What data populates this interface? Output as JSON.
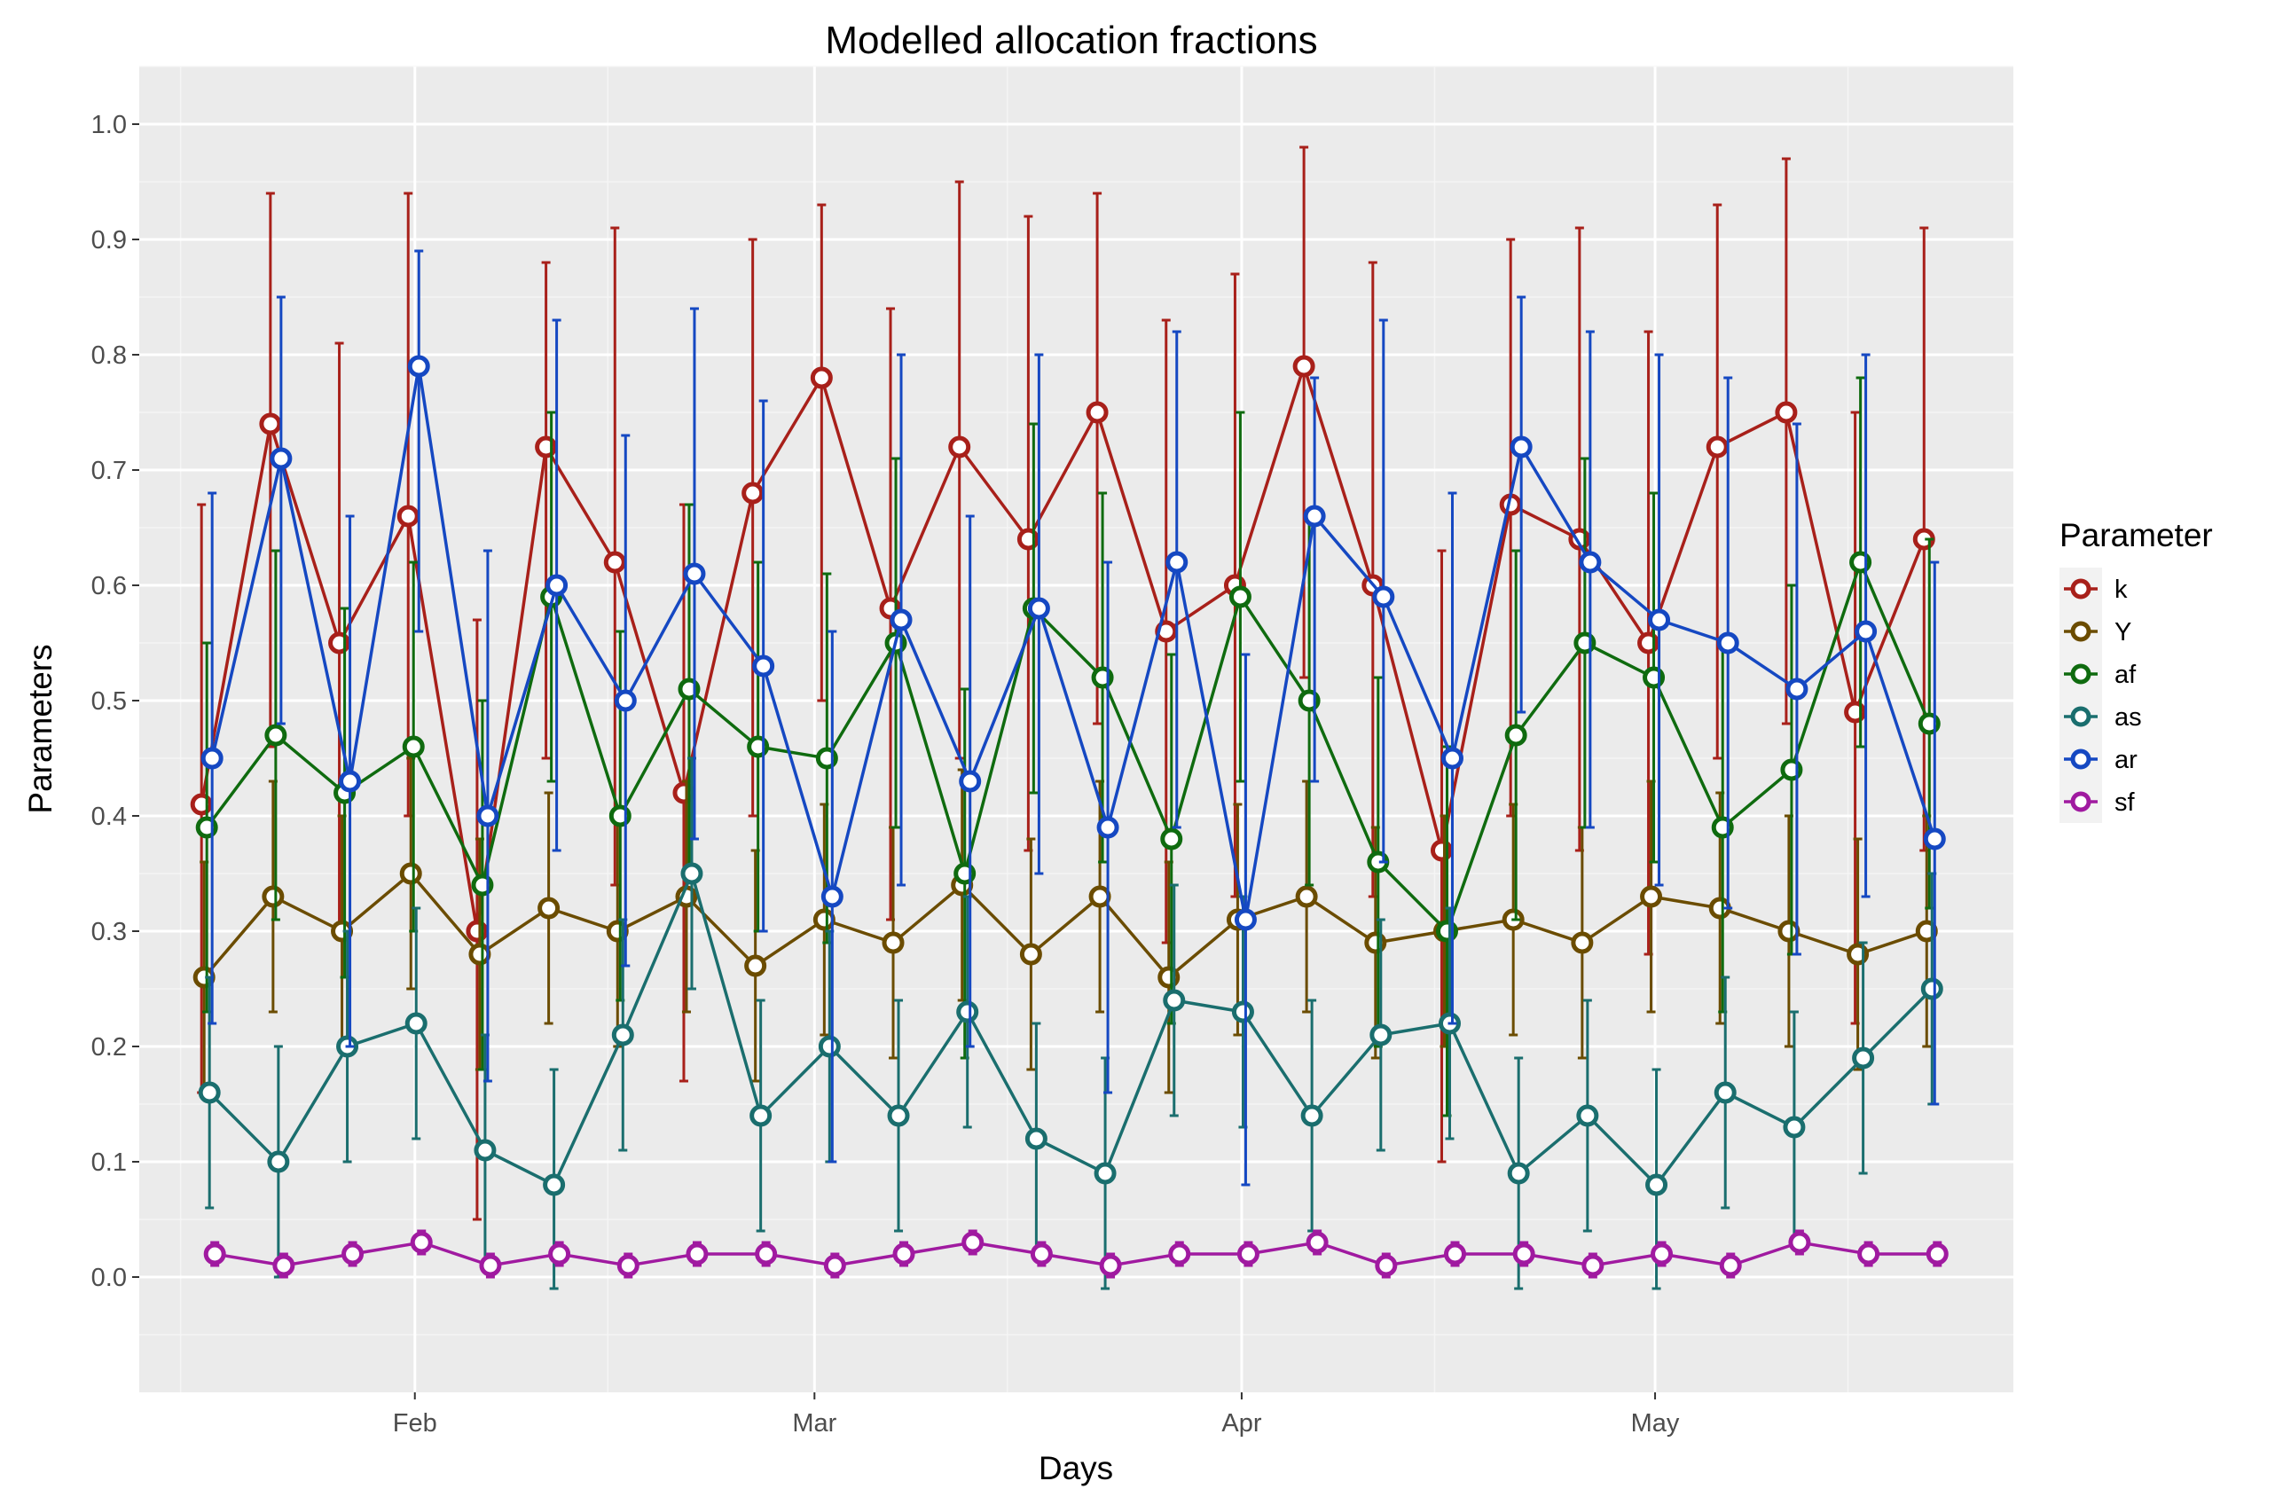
{
  "chart_data": {
    "type": "line",
    "title": "Modelled allocation fractions",
    "xlabel": "Days",
    "ylabel": "Parameters",
    "x_ticks": [
      "Feb",
      "Mar",
      "Apr",
      "May"
    ],
    "y_ticks": [
      "0.0",
      "0.1",
      "0.2",
      "0.3",
      "0.4",
      "0.5",
      "0.6",
      "0.7",
      "0.8",
      "0.9",
      "1.0"
    ],
    "ylim": [
      -0.1,
      1.05
    ],
    "xlim": [
      "2016-01-12",
      "2016-05-27"
    ],
    "grid": true,
    "error_bars": true,
    "legend": {
      "title": "Parameter",
      "position": "right"
    },
    "x": [
      "2016-01-17",
      "2016-01-22",
      "2016-01-27",
      "2016-02-01",
      "2016-02-06",
      "2016-02-11",
      "2016-02-16",
      "2016-02-21",
      "2016-02-26",
      "2016-03-02",
      "2016-03-07",
      "2016-03-12",
      "2016-03-17",
      "2016-03-22",
      "2016-03-27",
      "2016-04-01",
      "2016-04-06",
      "2016-04-11",
      "2016-04-16",
      "2016-04-21",
      "2016-04-26",
      "2016-05-01",
      "2016-05-06",
      "2016-05-11",
      "2016-05-16",
      "2016-05-21"
    ],
    "series": [
      {
        "name": "k",
        "color": "#a8201a",
        "values": [
          0.41,
          0.74,
          0.55,
          0.66,
          0.3,
          0.72,
          0.62,
          0.42,
          0.68,
          0.78,
          0.58,
          0.72,
          0.64,
          0.75,
          0.56,
          0.6,
          0.79,
          0.6,
          0.37,
          0.67,
          0.64,
          0.55,
          0.72,
          0.75,
          0.49,
          0.64
        ],
        "lower": [
          0.16,
          0.46,
          0.3,
          0.4,
          0.05,
          0.45,
          0.34,
          0.17,
          0.4,
          0.5,
          0.31,
          0.45,
          0.37,
          0.48,
          0.29,
          0.33,
          0.52,
          0.33,
          0.1,
          0.4,
          0.37,
          0.28,
          0.45,
          0.48,
          0.22,
          0.37
        ],
        "upper": [
          0.67,
          0.94,
          0.81,
          0.94,
          0.57,
          0.88,
          0.91,
          0.67,
          0.9,
          0.93,
          0.84,
          0.95,
          0.92,
          0.94,
          0.83,
          0.87,
          0.98,
          0.88,
          0.63,
          0.9,
          0.91,
          0.82,
          0.93,
          0.97,
          0.75,
          0.91
        ]
      },
      {
        "name": "Y",
        "color": "#6b4c00",
        "values": [
          0.26,
          0.33,
          0.3,
          0.35,
          0.28,
          0.32,
          0.3,
          0.33,
          0.27,
          0.31,
          0.29,
          0.34,
          0.28,
          0.33,
          0.26,
          0.31,
          0.33,
          0.29,
          0.3,
          0.31,
          0.29,
          0.33,
          0.32,
          0.3,
          0.28,
          0.3
        ],
        "lower": [
          0.16,
          0.23,
          0.2,
          0.25,
          0.18,
          0.22,
          0.2,
          0.23,
          0.17,
          0.21,
          0.19,
          0.24,
          0.18,
          0.23,
          0.16,
          0.21,
          0.23,
          0.19,
          0.2,
          0.21,
          0.19,
          0.23,
          0.22,
          0.2,
          0.18,
          0.2
        ],
        "upper": [
          0.36,
          0.43,
          0.4,
          0.45,
          0.38,
          0.42,
          0.4,
          0.43,
          0.37,
          0.41,
          0.39,
          0.44,
          0.38,
          0.43,
          0.36,
          0.41,
          0.43,
          0.39,
          0.4,
          0.41,
          0.39,
          0.43,
          0.42,
          0.4,
          0.38,
          0.4
        ]
      },
      {
        "name": "af",
        "color": "#0f6b0f",
        "values": [
          0.39,
          0.47,
          0.42,
          0.46,
          0.34,
          0.59,
          0.4,
          0.51,
          0.46,
          0.45,
          0.55,
          0.35,
          0.58,
          0.52,
          0.38,
          0.59,
          0.5,
          0.36,
          0.3,
          0.47,
          0.55,
          0.52,
          0.39,
          0.44,
          0.62,
          0.48
        ],
        "lower": [
          0.23,
          0.31,
          0.26,
          0.3,
          0.18,
          0.43,
          0.24,
          0.35,
          0.3,
          0.29,
          0.39,
          0.19,
          0.42,
          0.36,
          0.22,
          0.43,
          0.34,
          0.2,
          0.14,
          0.31,
          0.39,
          0.36,
          0.23,
          0.28,
          0.46,
          0.32
        ],
        "upper": [
          0.55,
          0.63,
          0.58,
          0.62,
          0.5,
          0.75,
          0.56,
          0.67,
          0.62,
          0.61,
          0.71,
          0.51,
          0.74,
          0.68,
          0.54,
          0.75,
          0.66,
          0.52,
          0.46,
          0.63,
          0.71,
          0.68,
          0.55,
          0.6,
          0.78,
          0.64
        ]
      },
      {
        "name": "as",
        "color": "#1a6e6e",
        "values": [
          0.16,
          0.1,
          0.2,
          0.22,
          0.11,
          0.08,
          0.21,
          0.35,
          0.14,
          0.2,
          0.14,
          0.23,
          0.12,
          0.09,
          0.24,
          0.23,
          0.14,
          0.21,
          0.22,
          0.09,
          0.14,
          0.08,
          0.16,
          0.13,
          0.19,
          0.25
        ],
        "lower": [
          0.06,
          0.0,
          0.1,
          0.12,
          0.01,
          -0.01,
          0.11,
          0.25,
          0.04,
          0.1,
          0.04,
          0.13,
          0.02,
          -0.01,
          0.14,
          0.13,
          0.04,
          0.11,
          0.12,
          -0.01,
          0.04,
          -0.01,
          0.06,
          0.03,
          0.09,
          0.15
        ],
        "upper": [
          0.26,
          0.2,
          0.3,
          0.32,
          0.21,
          0.18,
          0.31,
          0.45,
          0.24,
          0.3,
          0.24,
          0.33,
          0.22,
          0.19,
          0.34,
          0.33,
          0.24,
          0.31,
          0.32,
          0.19,
          0.24,
          0.18,
          0.26,
          0.23,
          0.29,
          0.35
        ]
      },
      {
        "name": "ar",
        "color": "#1548c2",
        "values": [
          0.45,
          0.71,
          0.43,
          0.79,
          0.4,
          0.6,
          0.5,
          0.61,
          0.53,
          0.33,
          0.57,
          0.43,
          0.58,
          0.39,
          0.62,
          0.31,
          0.66,
          0.59,
          0.45,
          0.72,
          0.62,
          0.57,
          0.55,
          0.51,
          0.56,
          0.38
        ],
        "lower": [
          0.22,
          0.48,
          0.2,
          0.56,
          0.17,
          0.37,
          0.27,
          0.38,
          0.3,
          0.1,
          0.34,
          0.2,
          0.35,
          0.16,
          0.39,
          0.08,
          0.43,
          0.36,
          0.22,
          0.49,
          0.39,
          0.34,
          0.32,
          0.28,
          0.33,
          0.15
        ],
        "upper": [
          0.68,
          0.85,
          0.66,
          0.89,
          0.63,
          0.83,
          0.73,
          0.84,
          0.76,
          0.56,
          0.8,
          0.66,
          0.8,
          0.62,
          0.82,
          0.54,
          0.78,
          0.83,
          0.68,
          0.85,
          0.82,
          0.8,
          0.78,
          0.74,
          0.8,
          0.62
        ]
      },
      {
        "name": "sf",
        "color": "#a01aa0",
        "values": [
          0.02,
          0.01,
          0.02,
          0.03,
          0.01,
          0.02,
          0.01,
          0.02,
          0.02,
          0.01,
          0.02,
          0.03,
          0.02,
          0.01,
          0.02,
          0.02,
          0.03,
          0.01,
          0.02,
          0.02,
          0.01,
          0.02,
          0.01,
          0.03,
          0.02,
          0.02
        ],
        "lower": [
          0.01,
          0.0,
          0.01,
          0.02,
          0.0,
          0.01,
          0.0,
          0.01,
          0.01,
          0.0,
          0.01,
          0.02,
          0.01,
          0.0,
          0.01,
          0.01,
          0.02,
          0.0,
          0.01,
          0.01,
          0.0,
          0.01,
          0.0,
          0.02,
          0.01,
          0.01
        ],
        "upper": [
          0.03,
          0.02,
          0.03,
          0.04,
          0.02,
          0.03,
          0.02,
          0.03,
          0.03,
          0.02,
          0.03,
          0.04,
          0.03,
          0.02,
          0.03,
          0.03,
          0.04,
          0.02,
          0.03,
          0.03,
          0.02,
          0.03,
          0.02,
          0.04,
          0.03,
          0.03
        ]
      }
    ]
  }
}
